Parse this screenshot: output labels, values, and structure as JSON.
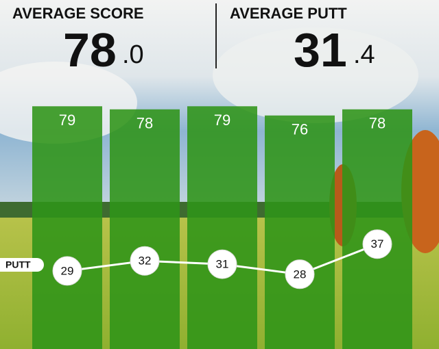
{
  "header": {
    "stats": [
      {
        "label": "AVERAGE SCORE",
        "integer": "78",
        "decimal": ".0"
      },
      {
        "label": "AVERAGE PUTT",
        "integer": "31",
        "decimal": ".4"
      }
    ]
  },
  "chart_data": {
    "type": "bar",
    "categories": [
      null,
      null,
      null,
      null,
      null
    ],
    "series": [
      {
        "type": "bar",
        "color": "#2f9418",
        "values": [
          79,
          78,
          79,
          76,
          78
        ]
      },
      {
        "type": "line",
        "name": "PUTT",
        "color": "#ffffff",
        "values": [
          29,
          32,
          31,
          28,
          37
        ]
      }
    ]
  }
}
